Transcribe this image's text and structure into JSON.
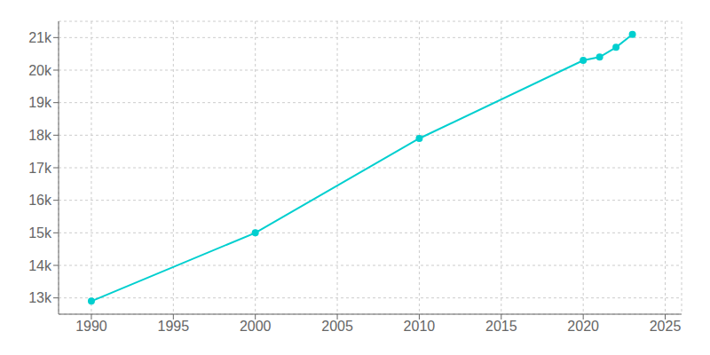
{
  "chart_data": {
    "type": "line",
    "x": [
      1990,
      2000,
      2010,
      2020,
      2021,
      2022,
      2023
    ],
    "values": [
      12900,
      15000,
      17900,
      20300,
      20400,
      20700,
      21100
    ],
    "color": "#00CFCF",
    "marker": "circle",
    "xlim": [
      1988,
      2026
    ],
    "ylim": [
      12500,
      21500
    ],
    "xticks": [
      1990,
      1995,
      2000,
      2005,
      2010,
      2015,
      2020,
      2025
    ],
    "yticks": [
      {
        "value": 13000,
        "label": "13k"
      },
      {
        "value": 14000,
        "label": "14k"
      },
      {
        "value": 15000,
        "label": "15k"
      },
      {
        "value": 16000,
        "label": "16k"
      },
      {
        "value": 17000,
        "label": "17k"
      },
      {
        "value": 18000,
        "label": "18k"
      },
      {
        "value": 19000,
        "label": "19k"
      },
      {
        "value": 20000,
        "label": "20k"
      },
      {
        "value": 21000,
        "label": "21k"
      }
    ],
    "grid": true
  }
}
